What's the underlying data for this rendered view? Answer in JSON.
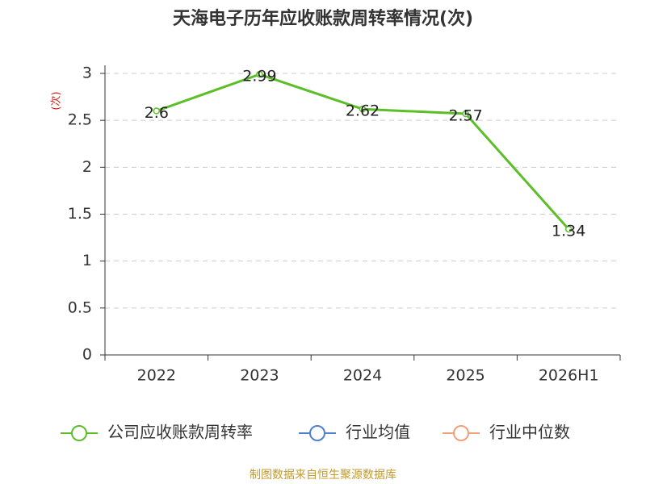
{
  "chart_data": {
    "type": "line",
    "title": "天海电子历年应收账款周转率情况(次)",
    "ylabel": "(次)",
    "categories": [
      "2022",
      "2023",
      "2024",
      "2025",
      "2026H1"
    ],
    "series": [
      {
        "name": "公司应收账款周转率",
        "color": "#5cbf2a",
        "values": [
          2.6,
          2.99,
          2.62,
          2.57,
          1.34
        ]
      },
      {
        "name": "行业均值",
        "color": "#4f7fcf",
        "values": [
          null,
          null,
          null,
          null,
          null
        ]
      },
      {
        "name": "行业中位数",
        "color": "#f2a07a",
        "values": [
          null,
          null,
          null,
          null,
          null
        ]
      }
    ],
    "ylim": [
      0,
      3
    ],
    "yticks": [
      0,
      0.5,
      1,
      1.5,
      2,
      2.5,
      3
    ],
    "grid": true,
    "source": "制图数据来自恒生聚源数据库"
  }
}
